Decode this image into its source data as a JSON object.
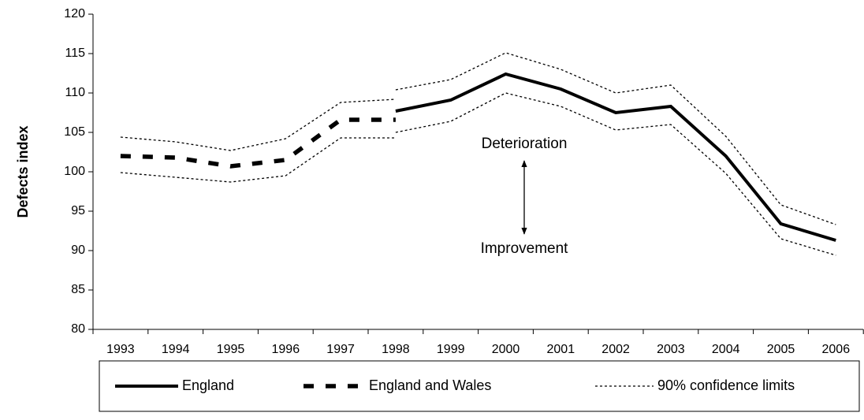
{
  "chart_data": {
    "type": "line",
    "ylabel": "Defects index",
    "categories": [
      "1993",
      "1994",
      "1995",
      "1996",
      "1997",
      "1998",
      "1999",
      "2000",
      "2001",
      "2002",
      "2003",
      "2004",
      "2005",
      "2006"
    ],
    "ylim": [
      80,
      120
    ],
    "yticks": [
      80,
      85,
      90,
      95,
      100,
      105,
      110,
      115,
      120
    ],
    "grid": false,
    "legend": "bottom",
    "annotations": [
      "Deterioration",
      "Improvement"
    ],
    "series": [
      {
        "name": "England",
        "color": "#000000",
        "style": "solid",
        "values": [
          null,
          null,
          null,
          null,
          null,
          107.7,
          109.1,
          112.4,
          110.5,
          107.5,
          108.3,
          102,
          93.4,
          91.3
        ]
      },
      {
        "name": "England and Wales",
        "color": "#000000",
        "style": "dashed",
        "values": [
          102,
          101.8,
          100.7,
          101.5,
          106.6,
          106.6,
          null,
          null,
          null,
          null,
          null,
          null,
          null,
          null
        ]
      },
      {
        "name": "90% confidence limits",
        "color": "#000000",
        "style": "dotted",
        "lines": [
          [
            104.4,
            103.8,
            102.7,
            104.2,
            108.8,
            109.2,
            null,
            null,
            null,
            null,
            null,
            null,
            null,
            null
          ],
          [
            99.9,
            99.3,
            98.7,
            99.5,
            104.3,
            104.3,
            null,
            null,
            null,
            null,
            null,
            null,
            null,
            null
          ],
          [
            null,
            null,
            null,
            null,
            null,
            110.4,
            111.7,
            115.1,
            113,
            110,
            111,
            104.5,
            95.8,
            93.3
          ],
          [
            null,
            null,
            null,
            null,
            null,
            105,
            106.4,
            110,
            108.3,
            105.3,
            106,
            99.8,
            91.5,
            89.4
          ]
        ]
      }
    ]
  }
}
